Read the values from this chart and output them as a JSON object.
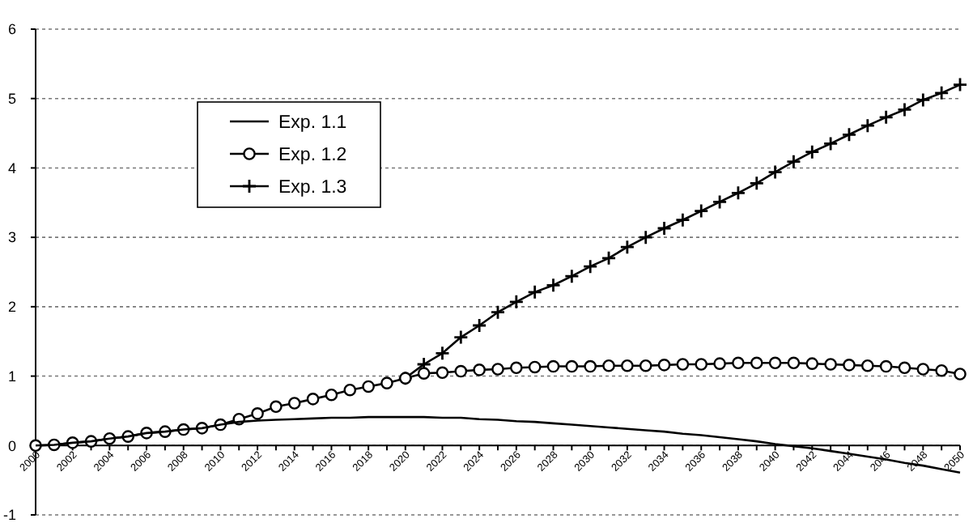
{
  "chart_data": {
    "type": "line",
    "categories": [
      "2000",
      null,
      "2002",
      null,
      "2004",
      null,
      "2006",
      null,
      "2008",
      null,
      "2010",
      null,
      "2012",
      null,
      "2014",
      null,
      "2016",
      null,
      "2018",
      null,
      "2020",
      null,
      "2022",
      null,
      "2024",
      null,
      "2026",
      null,
      "2028",
      null,
      "2030",
      null,
      "2032",
      null,
      "2034",
      null,
      "2036",
      null,
      "2038",
      null,
      "2040",
      null,
      "2042",
      null,
      "2044",
      null,
      "2046",
      null,
      "2048",
      null,
      "2050"
    ],
    "series": [
      {
        "name": "Exp. 1.1",
        "color": "#000000",
        "marker": "none",
        "values": [
          0.0,
          0.01,
          0.04,
          0.06,
          0.1,
          0.13,
          0.18,
          0.2,
          0.23,
          0.25,
          0.3,
          0.34,
          0.36,
          0.37,
          0.38,
          0.39,
          0.4,
          0.4,
          0.41,
          0.41,
          0.41,
          0.41,
          0.4,
          0.4,
          0.38,
          0.37,
          0.35,
          0.34,
          0.32,
          0.3,
          0.28,
          0.26,
          0.24,
          0.22,
          0.2,
          0.17,
          0.15,
          0.12,
          0.09,
          0.06,
          0.02,
          -0.01,
          -0.04,
          -0.08,
          -0.12,
          -0.16,
          -0.2,
          -0.25,
          -0.29,
          -0.34,
          -0.39
        ]
      },
      {
        "name": "Exp. 1.2",
        "color": "#000000",
        "marker": "circle",
        "values": [
          0.0,
          0.01,
          0.04,
          0.06,
          0.1,
          0.13,
          0.18,
          0.2,
          0.23,
          0.25,
          0.3,
          0.38,
          0.46,
          0.56,
          0.61,
          0.67,
          0.73,
          0.8,
          0.85,
          0.9,
          0.97,
          1.04,
          1.05,
          1.07,
          1.09,
          1.1,
          1.12,
          1.13,
          1.14,
          1.14,
          1.14,
          1.15,
          1.15,
          1.15,
          1.16,
          1.17,
          1.17,
          1.18,
          1.19,
          1.19,
          1.19,
          1.19,
          1.18,
          1.17,
          1.16,
          1.15,
          1.14,
          1.12,
          1.1,
          1.08,
          1.03
        ]
      },
      {
        "name": "Exp. 1.3",
        "color": "#000000",
        "marker": "cross",
        "values": [
          null,
          null,
          null,
          null,
          null,
          null,
          null,
          null,
          null,
          null,
          null,
          null,
          null,
          null,
          null,
          null,
          null,
          null,
          null,
          null,
          0.97,
          1.17,
          1.33,
          1.56,
          1.73,
          1.92,
          2.07,
          2.21,
          2.31,
          2.44,
          2.58,
          2.7,
          2.86,
          3.0,
          3.13,
          3.25,
          3.38,
          3.51,
          3.64,
          3.78,
          3.94,
          4.09,
          4.23,
          4.35,
          4.48,
          4.61,
          4.73,
          4.84,
          4.98,
          5.08,
          5.2
        ]
      }
    ],
    "ylim": [
      -1,
      6
    ],
    "yticks": [
      -1,
      0,
      1,
      2,
      3,
      4,
      5,
      6
    ],
    "grid": "y",
    "legend": "top left"
  }
}
